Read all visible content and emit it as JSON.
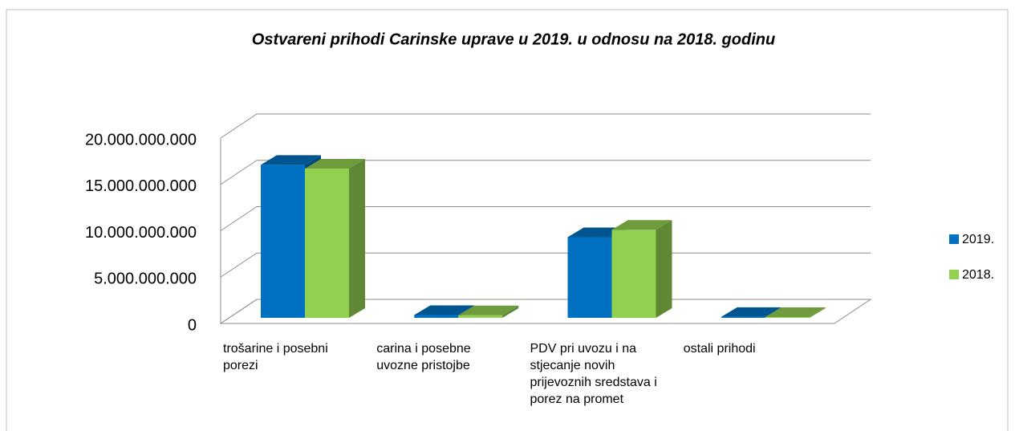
{
  "chart_data": {
    "type": "bar3d",
    "title": "Ostvareni prihodi Carinske uprave u 2019. u odnosu na 2018. godinu",
    "categories": [
      "trošarine i posebni porezi",
      "carina i posebne uvozne pristojbe",
      "PDV pri uvozu  i na stjecanje novih prijevoznih sredstava i porez na promet",
      "ostali prihodi"
    ],
    "series": [
      {
        "name": "2019.",
        "color": "#0070c0",
        "values": [
          16500000000,
          300000000,
          8700000000,
          100000000
        ]
      },
      {
        "name": "2018.",
        "color": "#92d050",
        "values": [
          16100000000,
          280000000,
          9500000000,
          90000000
        ]
      }
    ],
    "ylim": [
      0,
      20000000000
    ],
    "yticks": [
      0,
      {
        "value": 5000000000,
        "label": "5.000.000.000"
      },
      {
        "value": 10000000000,
        "label": "10.000.000.000"
      },
      {
        "value": 15000000000,
        "label": "15.000.000.000"
      },
      {
        "value": 20000000000,
        "label": "20.000.000.000"
      }
    ],
    "grid": true,
    "legend": "right"
  }
}
